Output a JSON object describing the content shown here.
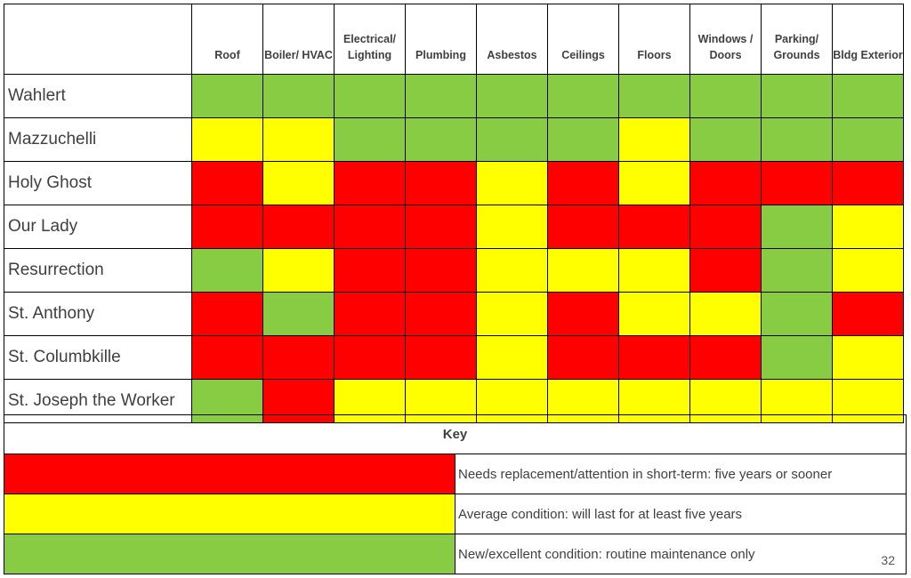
{
  "colors": {
    "red": "#ff0000",
    "yellow": "#ffff00",
    "green": "#88cc44"
  },
  "columns": [
    "Roof",
    "Boiler/ HVAC",
    "Electrical/ Lighting",
    "Plumbing",
    "Asbestos",
    "Ceilings",
    "Floors",
    "Windows / Doors",
    "Parking/ Grounds",
    "Bldg Exterior"
  ],
  "rows": [
    {
      "name": "Wahlert",
      "ratings": [
        "green",
        "green",
        "green",
        "green",
        "green",
        "green",
        "green",
        "green",
        "green",
        "green"
      ]
    },
    {
      "name": "Mazzuchelli",
      "ratings": [
        "yellow",
        "yellow",
        "green",
        "green",
        "green",
        "green",
        "yellow",
        "green",
        "green",
        "green"
      ]
    },
    {
      "name": "Holy Ghost",
      "ratings": [
        "red",
        "yellow",
        "red",
        "red",
        "yellow",
        "red",
        "yellow",
        "red",
        "red",
        "red"
      ]
    },
    {
      "name": "Our Lady",
      "ratings": [
        "red",
        "red",
        "red",
        "red",
        "yellow",
        "red",
        "red",
        "red",
        "green",
        "yellow"
      ]
    },
    {
      "name": "Resurrection",
      "ratings": [
        "green",
        "yellow",
        "red",
        "red",
        "yellow",
        "yellow",
        "yellow",
        "red",
        "green",
        "yellow"
      ]
    },
    {
      "name": "St. Anthony",
      "ratings": [
        "red",
        "green",
        "red",
        "red",
        "yellow",
        "red",
        "yellow",
        "yellow",
        "green",
        "red"
      ]
    },
    {
      "name": "St. Columbkille",
      "ratings": [
        "red",
        "red",
        "red",
        "red",
        "yellow",
        "red",
        "red",
        "red",
        "green",
        "yellow"
      ]
    },
    {
      "name": "St. Joseph the Worker",
      "ratings": [
        "green",
        "red",
        "yellow",
        "yellow",
        "yellow",
        "yellow",
        "yellow",
        "yellow",
        "yellow",
        "yellow"
      ]
    }
  ],
  "key": {
    "title": "Key",
    "items": [
      {
        "color": "red",
        "label": "Needs replacement/attention in short-term: five years or sooner"
      },
      {
        "color": "yellow",
        "label": "Average condition: will last for at least five years"
      },
      {
        "color": "green",
        "label": "New/excellent condition: routine maintenance only"
      }
    ]
  },
  "page_number": "32"
}
